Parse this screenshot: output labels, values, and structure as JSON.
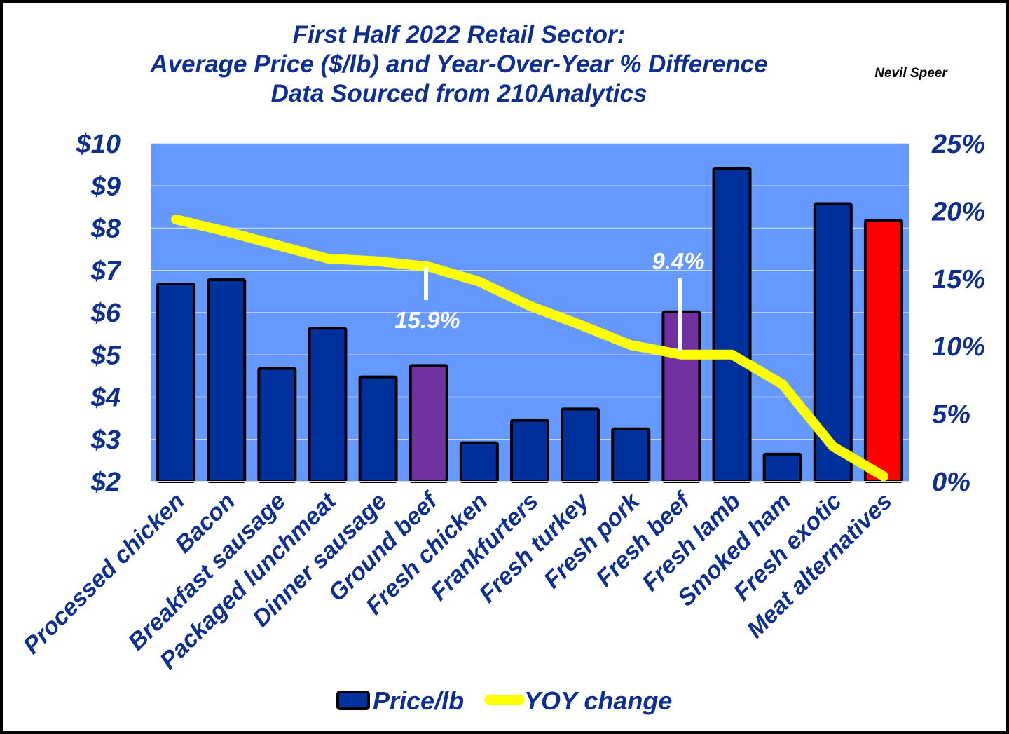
{
  "chart_data": {
    "type": "bar",
    "title": [
      "First Half 2022 Retail Sector:",
      "Average Price ($/lb) and Year-Over-Year % Difference",
      "Data Sourced from 210Analytics"
    ],
    "author": "Nevil Speer",
    "categories": [
      "Processed chicken",
      "Bacon",
      "Breakfast sausage",
      "Packaged lunchmeat",
      "Dinner sausage",
      "Ground beef",
      "Fresh chicken",
      "Frankfurters",
      "Fresh turkey",
      "Fresh pork",
      "Fresh beef",
      "Fresh lamb",
      "Smoked ham",
      "Fresh exotic",
      "Meat alternatives"
    ],
    "series": [
      {
        "name": "Price/lb",
        "type": "bar",
        "axis": "left",
        "color": "#00309c",
        "values": [
          6.68,
          6.78,
          4.68,
          5.63,
          4.48,
          4.75,
          2.92,
          3.45,
          3.72,
          3.25,
          6.02,
          9.42,
          2.65,
          8.58,
          8.19
        ],
        "highlight_colors": {
          "Ground beef": "#7030a0",
          "Fresh beef": "#7030a0",
          "Meat alternatives": "#ff0000"
        }
      },
      {
        "name": "YOY change",
        "type": "line",
        "axis": "right",
        "color": "#ffff00",
        "values": [
          19.4,
          18.5,
          17.5,
          16.5,
          16.3,
          15.9,
          14.8,
          13.0,
          11.6,
          10.1,
          9.4,
          9.4,
          7.2,
          2.6,
          0.4
        ]
      }
    ],
    "y_left": {
      "min": 2,
      "max": 10,
      "ticks": [
        "$2",
        "$3",
        "$4",
        "$5",
        "$6",
        "$7",
        "$8",
        "$9",
        "$10"
      ]
    },
    "y_right": {
      "min": 0,
      "max": 25,
      "ticks": [
        "0%",
        "5%",
        "10%",
        "15%",
        "20%",
        "25%"
      ]
    },
    "annotations": [
      {
        "text": "15.9%",
        "category": "Ground beef"
      },
      {
        "text": "9.4%",
        "category": "Fresh beef"
      }
    ],
    "legend_position": "bottom",
    "plot_background": "#6699ff",
    "grid": true
  }
}
